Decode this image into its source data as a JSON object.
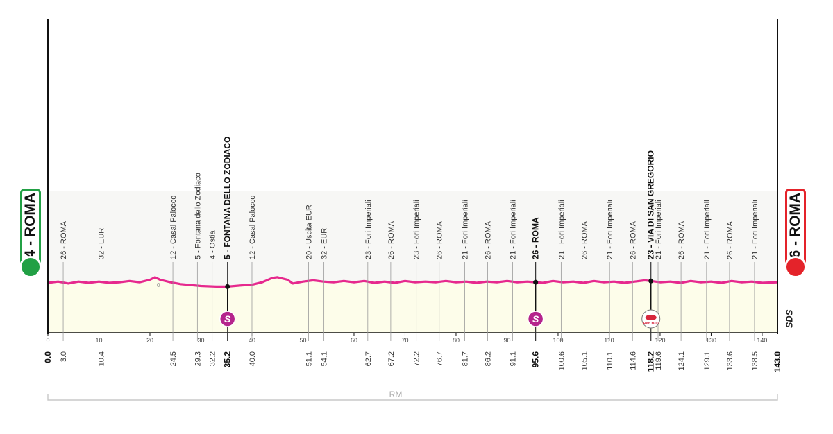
{
  "start_badge": {
    "label": "24 - ROMA",
    "color": "#22a045"
  },
  "finish_badge": {
    "label": "26 - ROMA",
    "color": "#e4232a"
  },
  "sds_mark": "SDS",
  "bracket_label": "RM",
  "colors": {
    "profile_line": "#e6298e",
    "profile_fill": "#fdfdea",
    "sprint": "#b5248c"
  },
  "chart_data": {
    "type": "area",
    "title": "",
    "xlabel": "",
    "ylabel": "",
    "xlim": [
      0,
      143.0
    ],
    "x_ticks": [
      0,
      10,
      20,
      30,
      40,
      50,
      60,
      70,
      80,
      90,
      100,
      110,
      120,
      130,
      140
    ],
    "elevation_markers": [
      {
        "km": 0,
        "label": "0"
      }
    ],
    "profile": [
      [
        0,
        23
      ],
      [
        2,
        25
      ],
      [
        4,
        22
      ],
      [
        6,
        25
      ],
      [
        8,
        23
      ],
      [
        10,
        25
      ],
      [
        12,
        23
      ],
      [
        14,
        24
      ],
      [
        16,
        26
      ],
      [
        18,
        24
      ],
      [
        20,
        28
      ],
      [
        21,
        32
      ],
      [
        22,
        28
      ],
      [
        24,
        24
      ],
      [
        26,
        21
      ],
      [
        30,
        18
      ],
      [
        33,
        17
      ],
      [
        35.2,
        17
      ],
      [
        38,
        19
      ],
      [
        40,
        20
      ],
      [
        42,
        24
      ],
      [
        44,
        31
      ],
      [
        45,
        32
      ],
      [
        47,
        28
      ],
      [
        48,
        22
      ],
      [
        50,
        25
      ],
      [
        52,
        27
      ],
      [
        54,
        25
      ],
      [
        56,
        24
      ],
      [
        58,
        26
      ],
      [
        60,
        24
      ],
      [
        62,
        26
      ],
      [
        64,
        23
      ],
      [
        66,
        25
      ],
      [
        68,
        23
      ],
      [
        70,
        26
      ],
      [
        72,
        24
      ],
      [
        74,
        25
      ],
      [
        76,
        24
      ],
      [
        78,
        26
      ],
      [
        80,
        24
      ],
      [
        82,
        25
      ],
      [
        84,
        23
      ],
      [
        86,
        25
      ],
      [
        88,
        24
      ],
      [
        90,
        26
      ],
      [
        92,
        24
      ],
      [
        94,
        25
      ],
      [
        95.6,
        24
      ],
      [
        97,
        23
      ],
      [
        99,
        26
      ],
      [
        101,
        24
      ],
      [
        103,
        25
      ],
      [
        105,
        23
      ],
      [
        107,
        26
      ],
      [
        109,
        24
      ],
      [
        111,
        25
      ],
      [
        113,
        23
      ],
      [
        115,
        25
      ],
      [
        117,
        27
      ],
      [
        118.2,
        26
      ],
      [
        120,
        24
      ],
      [
        122,
        25
      ],
      [
        124,
        23
      ],
      [
        126,
        26
      ],
      [
        128,
        24
      ],
      [
        130,
        25
      ],
      [
        132,
        23
      ],
      [
        134,
        26
      ],
      [
        136,
        24
      ],
      [
        138,
        25
      ],
      [
        140,
        23
      ],
      [
        143,
        24
      ]
    ],
    "waypoints": [
      {
        "km": "0.0",
        "label": "",
        "bold": true
      },
      {
        "km": "3.0",
        "label": "26 - ROMA",
        "bold": false
      },
      {
        "km": "10.4",
        "label": "32 - EUR",
        "bold": false
      },
      {
        "km": "24.5",
        "label": "12 - Casal Palocco",
        "bold": false
      },
      {
        "km": "29.3",
        "label": "5 - Fontana dello Zodiaco",
        "bold": false
      },
      {
        "km": "32.2",
        "label": "4 - Ostia",
        "bold": false
      },
      {
        "km": "35.2",
        "label": "5 - FONTANA DELLO ZODIACO",
        "bold": true,
        "marker": "sprint"
      },
      {
        "km": "40.0",
        "label": "12 - Casal Palocco",
        "bold": false
      },
      {
        "km": "51.1",
        "label": "20 - Uscita EUR",
        "bold": false
      },
      {
        "km": "54.1",
        "label": "32 - EUR",
        "bold": false
      },
      {
        "km": "62.7",
        "label": "23 - Fori Imperiali",
        "bold": false
      },
      {
        "km": "67.2",
        "label": "26 - ROMA",
        "bold": false
      },
      {
        "km": "72.2",
        "label": "23 - Fori Imperiali",
        "bold": false
      },
      {
        "km": "76.7",
        "label": "26 - ROMA",
        "bold": false
      },
      {
        "km": "81.7",
        "label": "21 - Fori Imperiali",
        "bold": false
      },
      {
        "km": "86.2",
        "label": "26 - ROMA",
        "bold": false
      },
      {
        "km": "91.1",
        "label": "21 - Fori Imperiali",
        "bold": false
      },
      {
        "km": "95.6",
        "label": "26 - ROMA",
        "bold": true,
        "marker": "sprint"
      },
      {
        "km": "100.6",
        "label": "21 - Fori Imperiali",
        "bold": false
      },
      {
        "km": "105.1",
        "label": "26 - ROMA",
        "bold": false
      },
      {
        "km": "110.1",
        "label": "21 - Fori Imperiali",
        "bold": false
      },
      {
        "km": "114.6",
        "label": "26 - ROMA",
        "bold": false
      },
      {
        "km": "118.2",
        "label": "23 - VIA DI SAN GREGORIO",
        "bold": true,
        "marker": "bonus"
      },
      {
        "km": "119.6",
        "label": "21 - Fori Imperiali",
        "bold": false
      },
      {
        "km": "124.1",
        "label": "26 - ROMA",
        "bold": false
      },
      {
        "km": "129.1",
        "label": "21 - Fori Imperiali",
        "bold": false
      },
      {
        "km": "133.6",
        "label": "26 - ROMA",
        "bold": false
      },
      {
        "km": "138.5",
        "label": "21 - Fori Imperiali",
        "bold": false
      },
      {
        "km": "143.0",
        "label": "",
        "bold": true
      }
    ],
    "sprint_symbol": "S",
    "bonus_symbol": "Red Bull",
    "grid": true
  }
}
